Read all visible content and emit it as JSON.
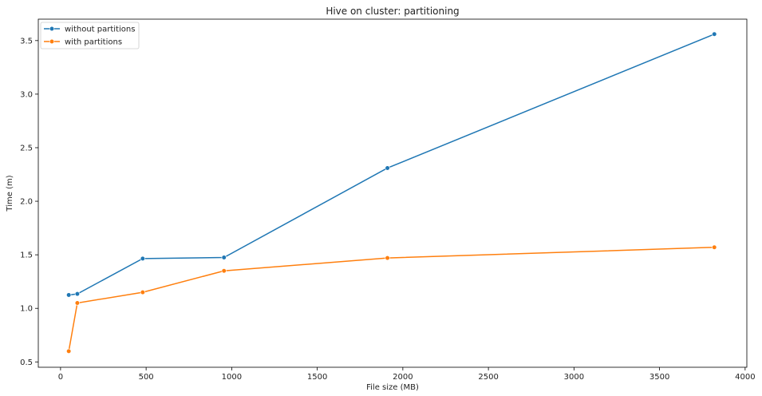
{
  "chart_data": {
    "type": "line",
    "title": "Hive on cluster: partitioning",
    "xlabel": "File size (MB)",
    "ylabel": "Time (m)",
    "xlim": [
      -130,
      4010
    ],
    "ylim": [
      0.45,
      3.7
    ],
    "xticks": [
      0,
      500,
      1000,
      1500,
      2000,
      2500,
      3000,
      3500,
      4000
    ],
    "yticks": [
      0.5,
      1.0,
      1.5,
      2.0,
      2.5,
      3.0,
      3.5
    ],
    "xtick_labels": [
      "0",
      "500",
      "1000",
      "1500",
      "2000",
      "2500",
      "3000",
      "3500",
      "4000"
    ],
    "ytick_labels": [
      "0.5",
      "1.0",
      "1.5",
      "2.0",
      "2.5",
      "3.0",
      "3.5"
    ],
    "grid": false,
    "legend_position": "top-left",
    "series": [
      {
        "name": "without partitions",
        "color": "#1f77b4",
        "points": [
          [
            48,
            1.125
          ],
          [
            98,
            1.135
          ],
          [
            480,
            1.465
          ],
          [
            955,
            1.475
          ],
          [
            1910,
            2.31
          ],
          [
            3820,
            3.56
          ]
        ]
      },
      {
        "name": "with partitions",
        "color": "#ff7f0e",
        "points": [
          [
            48,
            0.6
          ],
          [
            98,
            1.05
          ],
          [
            480,
            1.15
          ],
          [
            955,
            1.35
          ],
          [
            1910,
            1.47
          ],
          [
            3820,
            1.57
          ]
        ]
      }
    ]
  }
}
